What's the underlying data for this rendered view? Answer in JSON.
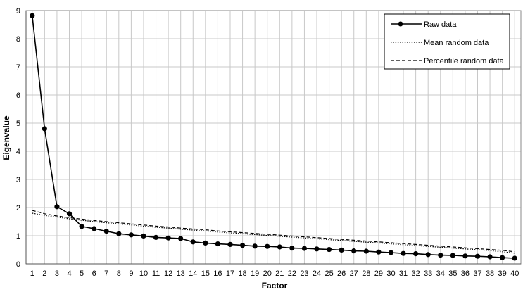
{
  "chart_data": {
    "type": "line",
    "title": "",
    "xlabel": "Factor",
    "ylabel": "Eigenvalue",
    "xlim": [
      1,
      40
    ],
    "ylim": [
      0,
      9
    ],
    "x_ticks": [
      1,
      2,
      3,
      4,
      5,
      6,
      7,
      8,
      9,
      10,
      11,
      12,
      13,
      14,
      15,
      16,
      17,
      18,
      19,
      20,
      21,
      22,
      23,
      24,
      25,
      26,
      27,
      28,
      29,
      30,
      31,
      32,
      33,
      34,
      35,
      36,
      37,
      38,
      39,
      40
    ],
    "y_ticks": [
      0,
      1,
      2,
      3,
      4,
      5,
      6,
      7,
      8,
      9
    ],
    "grid": true,
    "legend_position": "top-right",
    "series": [
      {
        "name": "Raw data",
        "style": "solid-markers",
        "color": "#000000",
        "x": [
          1,
          2,
          3,
          4,
          5,
          6,
          7,
          8,
          9,
          10,
          11,
          12,
          13,
          14,
          15,
          16,
          17,
          18,
          19,
          20,
          21,
          22,
          23,
          24,
          25,
          26,
          27,
          28,
          29,
          30,
          31,
          32,
          33,
          34,
          35,
          36,
          37,
          38,
          39,
          40
        ],
        "values": [
          8.82,
          4.8,
          2.03,
          1.78,
          1.33,
          1.25,
          1.16,
          1.07,
          1.03,
          0.99,
          0.94,
          0.92,
          0.9,
          0.78,
          0.74,
          0.71,
          0.69,
          0.66,
          0.63,
          0.62,
          0.6,
          0.56,
          0.55,
          0.53,
          0.51,
          0.49,
          0.46,
          0.45,
          0.42,
          0.4,
          0.37,
          0.36,
          0.33,
          0.31,
          0.3,
          0.28,
          0.27,
          0.25,
          0.22,
          0.2
        ]
      },
      {
        "name": "Mean random data",
        "style": "dotted",
        "color": "#000000",
        "x": [
          1,
          2,
          3,
          4,
          5,
          6,
          7,
          8,
          9,
          10,
          11,
          12,
          13,
          14,
          15,
          16,
          17,
          18,
          19,
          20,
          21,
          22,
          23,
          24,
          25,
          26,
          27,
          28,
          29,
          30,
          31,
          32,
          33,
          34,
          35,
          36,
          37,
          38,
          39,
          40
        ],
        "values": [
          1.8,
          1.72,
          1.66,
          1.6,
          1.55,
          1.5,
          1.46,
          1.42,
          1.38,
          1.34,
          1.3,
          1.27,
          1.23,
          1.2,
          1.17,
          1.13,
          1.1,
          1.07,
          1.04,
          1.01,
          0.98,
          0.95,
          0.92,
          0.89,
          0.86,
          0.83,
          0.8,
          0.77,
          0.74,
          0.71,
          0.68,
          0.65,
          0.62,
          0.59,
          0.56,
          0.53,
          0.5,
          0.47,
          0.43,
          0.38
        ]
      },
      {
        "name": "Percentile random data",
        "style": "dashed",
        "color": "#000000",
        "x": [
          1,
          2,
          3,
          4,
          5,
          6,
          7,
          8,
          9,
          10,
          11,
          12,
          13,
          14,
          15,
          16,
          17,
          18,
          19,
          20,
          21,
          22,
          23,
          24,
          25,
          26,
          27,
          28,
          29,
          30,
          31,
          32,
          33,
          34,
          35,
          36,
          37,
          38,
          39,
          40
        ],
        "values": [
          1.9,
          1.78,
          1.7,
          1.64,
          1.59,
          1.54,
          1.5,
          1.46,
          1.42,
          1.38,
          1.34,
          1.31,
          1.27,
          1.24,
          1.21,
          1.17,
          1.14,
          1.11,
          1.08,
          1.05,
          1.02,
          0.99,
          0.96,
          0.93,
          0.9,
          0.87,
          0.84,
          0.81,
          0.78,
          0.75,
          0.72,
          0.69,
          0.66,
          0.63,
          0.6,
          0.57,
          0.54,
          0.51,
          0.48,
          0.43
        ]
      }
    ]
  }
}
